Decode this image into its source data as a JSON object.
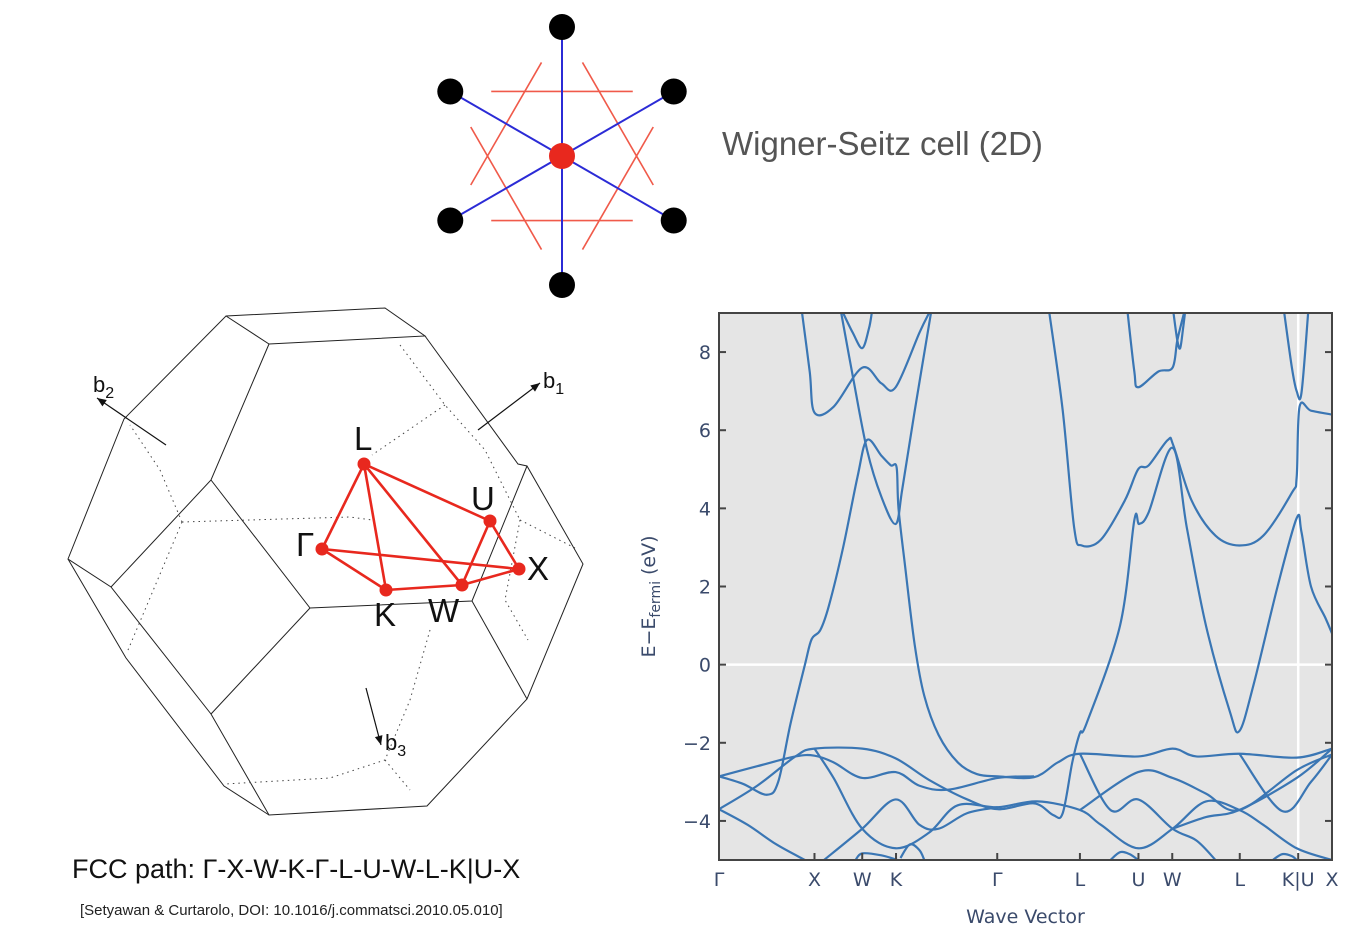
{
  "wigner_seitz": {
    "title": "Wigner-Seitz cell (2D)",
    "lattice_point_color": "#000000",
    "center_point_color": "#e8281e",
    "bond_color": "#2b2bd6",
    "cell_edge_color": "#f05a4a"
  },
  "brillouin_zone": {
    "points": [
      {
        "label": "L"
      },
      {
        "label": "U"
      },
      {
        "label": "X"
      },
      {
        "label": "W"
      },
      {
        "label": "K"
      },
      {
        "label": "Γ"
      }
    ],
    "vectors": [
      {
        "base": "b",
        "sub": "1"
      },
      {
        "base": "b",
        "sub": "2"
      },
      {
        "base": "b",
        "sub": "3"
      }
    ],
    "path_color": "#e8281e",
    "path_caption": "FCC path: Γ-X-W-K-Γ-L-U-W-L-K|U-X",
    "citation": "[Setyawan & Curtarolo, DOI: 10.1016/j.commatsci.2010.05.010]"
  },
  "chart_data": {
    "type": "line",
    "title": "",
    "xlabel": "Wave Vector",
    "ylabel_main": "E−E",
    "ylabel_sub": "fermi",
    "ylabel_unit": " (eV)",
    "ylim": [
      -5,
      9
    ],
    "yticks": [
      -4,
      -2,
      0,
      2,
      4,
      6,
      8
    ],
    "ytick_labels": [
      "−4",
      "−2",
      "0",
      "2",
      "4",
      "6",
      "8"
    ],
    "xlim": [
      0,
      6.42
    ],
    "xticks": [
      {
        "label": "Γ",
        "x": 0
      },
      {
        "label": "X",
        "x": 1.0
      },
      {
        "label": "W",
        "x": 1.5
      },
      {
        "label": "K",
        "x": 1.854
      },
      {
        "label": "Γ",
        "x": 2.914
      },
      {
        "label": "L",
        "x": 3.78
      },
      {
        "label": "U",
        "x": 4.393
      },
      {
        "label": "W",
        "x": 4.747
      },
      {
        "label": "L",
        "x": 5.454
      },
      {
        "label": "K|U",
        "x": 6.066
      },
      {
        "label": "X",
        "x": 6.42
      }
    ],
    "fermi_level": 0,
    "discontinuity_x": 6.066,
    "grid": false,
    "background": "#e5e5e5",
    "line_color": "#3a76b4",
    "bands": [
      [
        [
          0,
          -3.7
        ],
        [
          0.3,
          -4.1
        ],
        [
          0.6,
          -4.6
        ],
        [
          0.9,
          -5.0
        ]
      ],
      [
        [
          1.43,
          -5.0
        ],
        [
          1.5,
          -4.83
        ],
        [
          1.7,
          -4.88
        ],
        [
          1.87,
          -5.0
        ]
      ],
      [
        [
          1.9,
          -4.95
        ],
        [
          2.0,
          -4.6
        ],
        [
          2.1,
          -4.75
        ],
        [
          2.15,
          -5.0
        ]
      ],
      [
        [
          4.1,
          -5.0
        ],
        [
          4.2,
          -4.8
        ],
        [
          4.3,
          -4.85
        ],
        [
          4.39,
          -5.0
        ]
      ],
      [
        [
          5.8,
          -5.0
        ],
        [
          5.9,
          -4.85
        ],
        [
          6.0,
          -4.9
        ],
        [
          6.05,
          -5.0
        ]
      ],
      [
        [
          0,
          -2.86
        ],
        [
          0.25,
          -3.05
        ],
        [
          0.5,
          -3.33
        ],
        [
          0.62,
          -3.0
        ],
        [
          0.75,
          -1.5
        ],
        [
          0.9,
          0.0
        ],
        [
          0.97,
          0.65
        ],
        [
          1.06,
          0.88
        ],
        [
          1.15,
          1.5
        ],
        [
          1.3,
          3.0
        ],
        [
          1.45,
          4.8
        ],
        [
          1.55,
          5.75
        ],
        [
          1.7,
          5.35
        ],
        [
          1.8,
          5.1
        ],
        [
          1.86,
          5.05
        ],
        [
          1.88,
          4.0
        ],
        [
          1.95,
          2.5
        ],
        [
          2.05,
          0.5
        ],
        [
          2.15,
          -0.8
        ],
        [
          2.3,
          -1.8
        ],
        [
          2.5,
          -2.5
        ],
        [
          2.7,
          -2.8
        ],
        [
          2.92,
          -2.86
        ],
        [
          3.3,
          -2.88
        ],
        [
          3.55,
          -2.5
        ],
        [
          3.78,
          -2.28
        ],
        [
          4.39,
          -2.35
        ],
        [
          4.75,
          -2.15
        ],
        [
          5.0,
          -2.35
        ],
        [
          5.45,
          -2.28
        ],
        [
          6.05,
          -2.38
        ],
        [
          6.42,
          -2.15
        ]
      ],
      [
        [
          0,
          -3.7
        ],
        [
          0.4,
          -3.1
        ],
        [
          0.8,
          -2.35
        ],
        [
          1.0,
          -2.15
        ],
        [
          1.5,
          -2.15
        ],
        [
          1.85,
          -2.4
        ],
        [
          2.2,
          -2.95
        ],
        [
          2.6,
          -3.45
        ],
        [
          2.92,
          -3.7
        ],
        [
          3.3,
          -3.55
        ],
        [
          3.5,
          -3.85
        ],
        [
          3.6,
          -3.8
        ],
        [
          3.7,
          -2.5
        ],
        [
          3.78,
          -1.75
        ],
        [
          3.85,
          -1.5
        ],
        [
          4.2,
          1.0
        ],
        [
          4.35,
          3.7
        ],
        [
          4.4,
          3.6
        ],
        [
          4.5,
          3.9
        ],
        [
          4.75,
          5.55
        ],
        [
          4.9,
          3.5
        ],
        [
          5.1,
          1.0
        ],
        [
          5.35,
          -1.2
        ],
        [
          5.45,
          -1.7
        ],
        [
          5.6,
          -0.5
        ],
        [
          5.85,
          2.0
        ],
        [
          6.05,
          3.75
        ],
        [
          6.1,
          3.4
        ],
        [
          6.2,
          2.0
        ],
        [
          6.35,
          1.2
        ],
        [
          6.42,
          0.8
        ]
      ],
      [
        [
          0,
          -2.86
        ],
        [
          0.4,
          -2.6
        ],
        [
          0.8,
          -2.35
        ],
        [
          1.0,
          -2.33
        ],
        [
          1.2,
          -2.5
        ],
        [
          1.5,
          -2.9
        ],
        [
          1.85,
          -2.75
        ],
        [
          2.1,
          -3.1
        ],
        [
          2.4,
          -3.2
        ],
        [
          2.92,
          -2.9
        ],
        [
          3.3,
          -2.86
        ]
      ],
      [
        [
          1.0,
          -2.15
        ],
        [
          1.2,
          -2.9
        ],
        [
          1.5,
          -4.2
        ],
        [
          1.85,
          -4.7
        ],
        [
          2.2,
          -4.3
        ],
        [
          2.5,
          -3.6
        ],
        [
          2.92,
          -3.65
        ],
        [
          3.33,
          -3.5
        ],
        [
          3.78,
          -3.72
        ],
        [
          4.0,
          -4.1
        ],
        [
          4.39,
          -4.7
        ],
        [
          4.75,
          -4.2
        ],
        [
          5.1,
          -3.5
        ],
        [
          5.45,
          -3.72
        ],
        [
          5.7,
          -4.1
        ],
        [
          6.05,
          -4.7
        ],
        [
          6.42,
          -5.0
        ]
      ],
      [
        [
          1.1,
          -5.0
        ],
        [
          1.5,
          -4.2
        ],
        [
          1.85,
          -3.45
        ],
        [
          2.1,
          -4.1
        ],
        [
          2.3,
          -4.2
        ],
        [
          2.6,
          -3.8
        ],
        [
          2.92,
          -3.65
        ]
      ],
      [
        [
          3.78,
          -2.28
        ],
        [
          4.1,
          -3.72
        ],
        [
          4.39,
          -3.45
        ],
        [
          4.75,
          -4.2
        ],
        [
          5.0,
          -4.5
        ],
        [
          5.2,
          -5.0
        ]
      ],
      [
        [
          3.78,
          -3.72
        ],
        [
          4.39,
          -2.75
        ],
        [
          4.75,
          -2.9
        ],
        [
          5.1,
          -3.3
        ],
        [
          5.45,
          -3.72
        ],
        [
          6.05,
          -2.7
        ],
        [
          6.42,
          -2.3
        ]
      ],
      [
        [
          5.45,
          -2.28
        ],
        [
          5.9,
          -3.75
        ],
        [
          6.2,
          -3.0
        ],
        [
          6.42,
          -2.3
        ]
      ],
      [
        [
          4.75,
          -4.2
        ],
        [
          5.1,
          -3.9
        ],
        [
          5.45,
          -3.72
        ],
        [
          6.05,
          -2.9
        ],
        [
          6.42,
          -2.15
        ]
      ],
      [
        [
          0.87,
          9
        ],
        [
          0.95,
          7.5
        ],
        [
          1.0,
          6.45
        ],
        [
          1.2,
          6.6
        ],
        [
          1.5,
          7.6
        ],
        [
          1.7,
          7.2
        ],
        [
          1.85,
          7.1
        ],
        [
          2.1,
          8.5
        ],
        [
          2.2,
          9
        ]
      ],
      [
        [
          1.3,
          9
        ],
        [
          1.4,
          8.5
        ],
        [
          1.5,
          8.1
        ],
        [
          1.57,
          8.6
        ],
        [
          1.6,
          9
        ]
      ],
      [
        [
          1.28,
          9
        ],
        [
          1.4,
          7.4
        ],
        [
          1.55,
          5.5
        ],
        [
          1.7,
          4.3
        ],
        [
          1.85,
          3.6
        ],
        [
          1.92,
          4.5
        ],
        [
          2.05,
          6.5
        ],
        [
          2.22,
          9
        ]
      ],
      [
        [
          3.46,
          9
        ],
        [
          3.6,
          6.5
        ],
        [
          3.72,
          3.5
        ],
        [
          3.8,
          3.05
        ],
        [
          4.0,
          3.2
        ],
        [
          4.25,
          4.2
        ],
        [
          4.39,
          5.0
        ],
        [
          4.5,
          5.1
        ],
        [
          4.7,
          5.75
        ],
        [
          4.76,
          5.6
        ],
        [
          4.95,
          4.2
        ],
        [
          5.2,
          3.3
        ],
        [
          5.45,
          3.05
        ],
        [
          5.7,
          3.3
        ],
        [
          6.0,
          4.4
        ],
        [
          6.05,
          4.8
        ],
        [
          6.08,
          6.6
        ],
        [
          6.2,
          6.5
        ],
        [
          6.42,
          6.4
        ]
      ],
      [
        [
          4.28,
          9
        ],
        [
          4.35,
          7.5
        ],
        [
          4.39,
          7.1
        ],
        [
          4.6,
          7.5
        ],
        [
          4.75,
          7.6
        ],
        [
          4.8,
          8.3
        ],
        [
          4.87,
          9
        ]
      ],
      [
        [
          4.76,
          9
        ],
        [
          4.8,
          8.3
        ],
        [
          4.83,
          8.1
        ],
        [
          4.86,
          8.6
        ],
        [
          4.88,
          9
        ]
      ],
      [
        [
          5.92,
          9
        ],
        [
          6.0,
          7.6
        ],
        [
          6.05,
          7.0
        ],
        [
          6.1,
          6.95
        ],
        [
          6.17,
          9
        ]
      ]
    ]
  }
}
